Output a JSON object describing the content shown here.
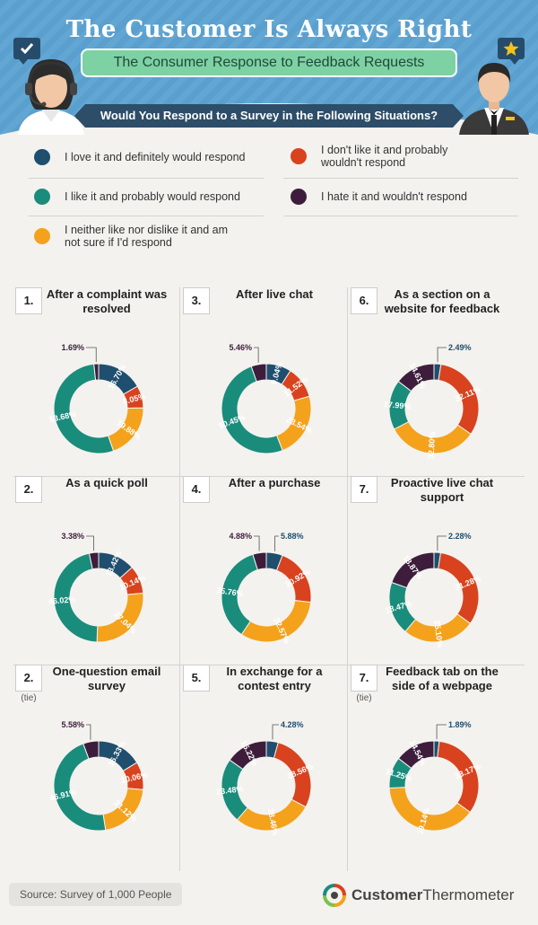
{
  "header": {
    "title": "The Customer Is Always Right",
    "subtitle": "The Consumer Response to Feedback Requests",
    "question": "Would You Respond to a Survey in the Following Situations?"
  },
  "legend": [
    {
      "label": "I love it and definitely would respond",
      "color": "#1f4e6e"
    },
    {
      "label": "I don't like it and probably wouldn't respond",
      "color": "#d9421e"
    },
    {
      "label": "I like it and probably would respond",
      "color": "#1a8c7c"
    },
    {
      "label": "I hate it and wouldn't respond",
      "color": "#3e1d3c"
    },
    {
      "label": "I neither like nor dislike it and am not sure if I'd respond",
      "color": "#f4a21c"
    }
  ],
  "icons": {
    "left_bubble": "checkmark-icon",
    "right_bubble": "star-icon",
    "left_person": "support-agent-icon",
    "right_person": "waiter-icon",
    "brand_logo": "thermometer-logo-icon"
  },
  "chart_data": [
    {
      "type": "pie",
      "rank": "1.",
      "tie": "",
      "title": "After a complaint was resolved",
      "categories": [
        "love",
        "dont_like",
        "neither",
        "like",
        "hate"
      ],
      "values": [
        16.7,
        8.05,
        19.88,
        53.68,
        1.69
      ],
      "labels": [
        "16.70%",
        "8.05%",
        "19.88%",
        "53.68%",
        "1.69%"
      ]
    },
    {
      "type": "pie",
      "rank": "3.",
      "tie": "",
      "title": "After live chat",
      "categories": [
        "love",
        "dont_like",
        "neither",
        "like",
        "hate"
      ],
      "values": [
        9.04,
        11.52,
        23.54,
        50.45,
        5.46
      ],
      "labels": [
        "9.04%",
        "11.52%",
        "23.54%",
        "50.45%",
        "5.46%"
      ]
    },
    {
      "type": "pie",
      "rank": "6.",
      "tie": "",
      "title": "As a section on a website for feedback",
      "categories": [
        "love",
        "dont_like",
        "neither",
        "like",
        "hate"
      ],
      "values": [
        2.49,
        32.11,
        32.8,
        17.99,
        14.61
      ],
      "labels": [
        "2.49%",
        "32.11%",
        "32.80%",
        "17.99%",
        "14.61%"
      ]
    },
    {
      "type": "pie",
      "rank": "2.",
      "tie": "",
      "title": "As a quick poll",
      "categories": [
        "love",
        "dont_like",
        "neither",
        "like",
        "hate"
      ],
      "values": [
        13.42,
        10.14,
        27.04,
        46.02,
        3.38
      ],
      "labels": [
        "13.42%",
        "10.14%",
        "27.04%",
        "46.02%",
        "3.38%"
      ]
    },
    {
      "type": "pie",
      "rank": "4.",
      "tie": "",
      "title": "After a purchase",
      "categories": [
        "love",
        "dont_like",
        "neither",
        "like",
        "hate"
      ],
      "values": [
        5.88,
        20.92,
        32.57,
        35.76,
        4.88
      ],
      "labels": [
        "5.88%",
        "20.92%",
        "32.57%",
        "35.76%",
        "4.88%"
      ]
    },
    {
      "type": "pie",
      "rank": "7.",
      "tie": "",
      "title": "Proactive live chat support",
      "categories": [
        "love",
        "dont_like",
        "neither",
        "like",
        "hate"
      ],
      "values": [
        2.28,
        31.28,
        25.1,
        18.47,
        18.87
      ],
      "labels": [
        "2.28%",
        "31.28%",
        "25.10%",
        "18.47%",
        "18.87%"
      ]
    },
    {
      "type": "pie",
      "rank": "2.",
      "tie": "(tie)",
      "title": "One-question email survey",
      "categories": [
        "love",
        "dont_like",
        "neither",
        "like",
        "hate"
      ],
      "values": [
        16.33,
        10.06,
        21.12,
        46.91,
        5.58
      ],
      "labels": [
        "16.33%",
        "10.06%",
        "21.12%",
        "46.91%",
        "5.58%"
      ]
    },
    {
      "type": "pie",
      "rank": "5.",
      "tie": "",
      "title": "In exchange for a contest entry",
      "categories": [
        "love",
        "dont_like",
        "neither",
        "like",
        "hate"
      ],
      "values": [
        4.28,
        28.56,
        28.46,
        23.48,
        15.22
      ],
      "labels": [
        "4.28%",
        "28.56%",
        "28.46%",
        "23.48%",
        "15.22%"
      ]
    },
    {
      "type": "pie",
      "rank": "7.",
      "tie": "(tie)",
      "title": "Feedback tab on the side of a webpage",
      "categories": [
        "love",
        "dont_like",
        "neither",
        "like",
        "hate"
      ],
      "values": [
        1.89,
        33.17,
        39.14,
        11.25,
        14.54
      ],
      "labels": [
        "1.89%",
        "33.17%",
        "39.14%",
        "11.25%",
        "14.54%"
      ]
    }
  ],
  "footer": {
    "source": "Source: Survey of 1,000 People",
    "brand_part1": "Customer",
    "brand_part2": "Thermometer"
  }
}
